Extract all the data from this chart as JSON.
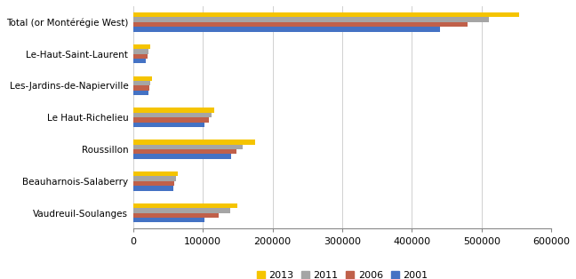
{
  "categories": [
    "Total (or Montérégie West)",
    "Le-Haut-Saint-Laurent",
    "Les-Jardins-de-Napierville",
    "Le Haut-Richelieu",
    "Roussillon",
    "Beauharnois-Salaberry",
    "Vaudreuil-Soulanges"
  ],
  "years": [
    "2013",
    "2011",
    "2006",
    "2001"
  ],
  "colors": [
    "#f5c400",
    "#a5a5a5",
    "#c0604a",
    "#4472c4"
  ],
  "values": {
    "2013": [
      554000,
      24000,
      27500,
      116000,
      175000,
      64000,
      150000
    ],
    "2011": [
      510000,
      21500,
      25000,
      112000,
      157000,
      61000,
      139000
    ],
    "2006": [
      480000,
      20500,
      23500,
      108000,
      148000,
      59000,
      123000
    ],
    "2001": [
      440000,
      18500,
      22000,
      102000,
      140000,
      57000,
      102000
    ]
  },
  "xlim": [
    0,
    600000
  ],
  "xticks": [
    0,
    100000,
    200000,
    300000,
    400000,
    500000,
    600000
  ],
  "background_color": "#ffffff",
  "grid_color": "#d0d0d0",
  "bar_height": 0.15
}
